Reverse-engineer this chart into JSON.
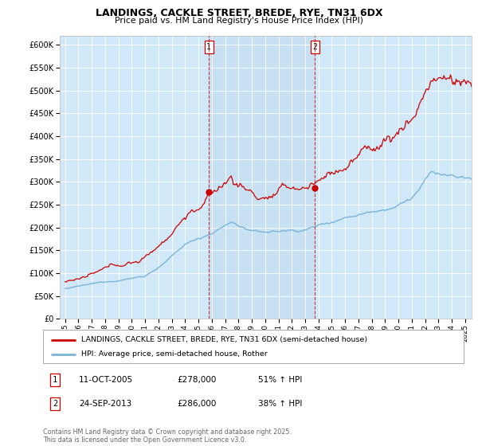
{
  "title": "LANDINGS, CACKLE STREET, BREDE, RYE, TN31 6DX",
  "subtitle": "Price paid vs. HM Land Registry's House Price Index (HPI)",
  "legend_line1": "LANDINGS, CACKLE STREET, BREDE, RYE, TN31 6DX (semi-detached house)",
  "legend_line2": "HPI: Average price, semi-detached house, Rother",
  "ann1_date": "11-OCT-2005",
  "ann1_price": "£278,000",
  "ann1_pct": "51% ↑ HPI",
  "ann1_price_val": 278000,
  "ann2_date": "24-SEP-2013",
  "ann2_price": "£286,000",
  "ann2_pct": "38% ↑ HPI",
  "ann2_price_val": 286000,
  "footer": "Contains HM Land Registry data © Crown copyright and database right 2025.\nThis data is licensed under the Open Government Licence v3.0.",
  "hpi_color": "#7ab4d8",
  "price_color": "#cc0000",
  "shade_color": "#d0e8f8",
  "ylim": [
    0,
    620000
  ],
  "sale1_year": 2005.79,
  "sale2_year": 2013.73
}
